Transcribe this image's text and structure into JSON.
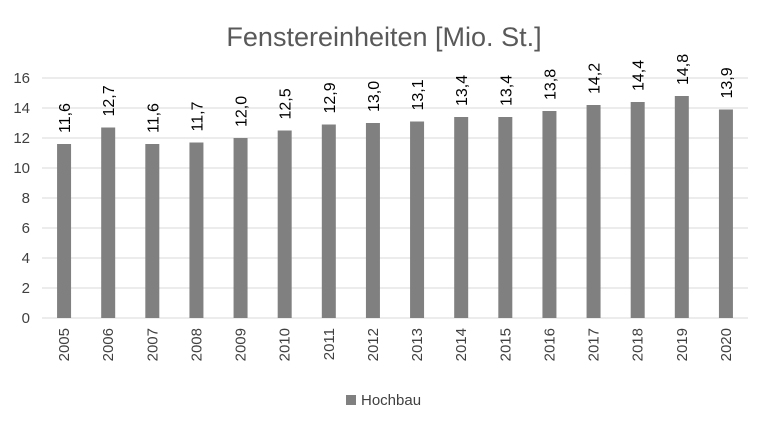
{
  "chart_data": {
    "type": "bar",
    "title": "Fenstereinheiten [Mio. St.]",
    "categories": [
      "2005",
      "2006",
      "2007",
      "2008",
      "2009",
      "2010",
      "2011",
      "2012",
      "2013",
      "2014",
      "2015",
      "2016",
      "2017",
      "2018",
      "2019",
      "2020"
    ],
    "series": [
      {
        "name": "Hochbau",
        "values": [
          11.6,
          12.7,
          11.6,
          11.7,
          12.0,
          12.5,
          12.9,
          13.0,
          13.1,
          13.4,
          13.4,
          13.8,
          14.2,
          14.4,
          14.8,
          13.9
        ],
        "labels": [
          "11,6",
          "12,7",
          "11,6",
          "11,7",
          "12,0",
          "12,5",
          "12,9",
          "13,0",
          "13,1",
          "13,4",
          "13,4",
          "13,8",
          "14,2",
          "14,4",
          "14,8",
          "13,9"
        ],
        "color": "#808080"
      }
    ],
    "ylim": [
      0,
      16
    ],
    "yticks": [
      "0",
      "2",
      "4",
      "6",
      "8",
      "10",
      "12",
      "14",
      "16"
    ],
    "grid": true,
    "legend_position": "bottom"
  }
}
